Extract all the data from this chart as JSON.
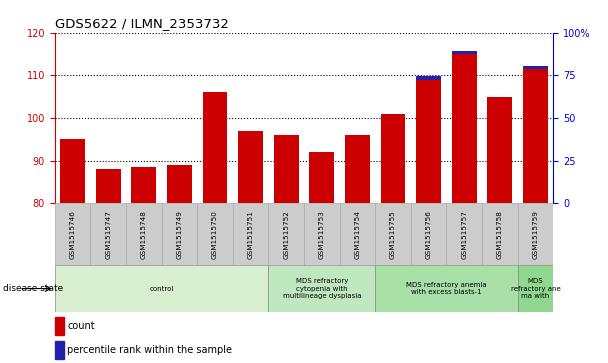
{
  "title": "GDS5622 / ILMN_2353732",
  "samples": [
    "GSM1515746",
    "GSM1515747",
    "GSM1515748",
    "GSM1515749",
    "GSM1515750",
    "GSM1515751",
    "GSM1515752",
    "GSM1515753",
    "GSM1515754",
    "GSM1515755",
    "GSM1515756",
    "GSM1515757",
    "GSM1515758",
    "GSM1515759"
  ],
  "count_values": [
    95,
    88,
    88.5,
    89,
    106,
    97,
    96,
    92,
    96,
    101,
    109,
    115,
    105,
    111.5
  ],
  "percentile_values": [
    0,
    0,
    0,
    0,
    0,
    0,
    0,
    0,
    0,
    0,
    2,
    2,
    0,
    2
  ],
  "ymin": 80,
  "ymax": 120,
  "y2min": 0,
  "y2max": 100,
  "yticks": [
    80,
    90,
    100,
    110,
    120
  ],
  "y2ticks": [
    0,
    25,
    50,
    75,
    100
  ],
  "bar_color_count": "#cc0000",
  "bar_color_pct": "#2222aa",
  "bar_width": 0.7,
  "disease_groups": [
    {
      "label": "control",
      "start": 0,
      "end": 6,
      "color": "#d8f0d0"
    },
    {
      "label": "MDS refractory\ncytopenia with\nmultilineage dysplasia",
      "start": 6,
      "end": 9,
      "color": "#c0e8c0"
    },
    {
      "label": "MDS refractory anemia\nwith excess blasts-1",
      "start": 9,
      "end": 13,
      "color": "#a8e0a8"
    },
    {
      "label": "MDS\nrefractory ane\nma with",
      "start": 13,
      "end": 14,
      "color": "#90d890"
    }
  ],
  "disease_state_label": "disease state",
  "legend_count": "count",
  "legend_pct": "percentile rank within the sample",
  "tick_color_left": "#cc0000",
  "tick_color_right": "#0000cc",
  "sample_bg": "#cccccc",
  "sample_border": "#aaaaaa"
}
